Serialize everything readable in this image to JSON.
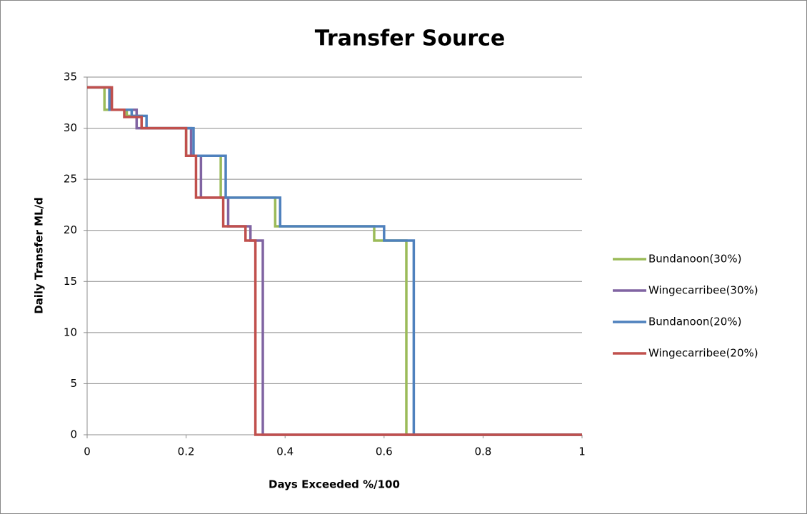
{
  "chart_data": {
    "type": "line",
    "title": "Transfer Source",
    "x_label": "Days Exceeded  %/100",
    "y_label": "Daily Transfer ML/d",
    "xlim": [
      0,
      1
    ],
    "xticks": [
      0,
      0.2,
      0.4,
      0.6,
      0.8,
      1
    ],
    "ylim": [
      0,
      35
    ],
    "yticks": [
      0,
      5,
      10,
      15,
      20,
      25,
      30,
      35
    ],
    "grid": true,
    "legend": "right",
    "series": [
      {
        "name": "Bundanoon(30%)",
        "color": "#9bbb59",
        "x": [
          0,
          0.035,
          0.035,
          0.08,
          0.08,
          0.11,
          0.11,
          0.2,
          0.2,
          0.27,
          0.27,
          0.38,
          0.38,
          0.58,
          0.58,
          0.645,
          0.645,
          1
        ],
        "y": [
          34,
          34,
          31.8,
          31.8,
          31.2,
          31.2,
          30,
          30,
          27.3,
          27.3,
          23.2,
          23.2,
          20.4,
          20.4,
          19,
          19,
          0,
          0
        ]
      },
      {
        "name": "Wingecarribee(30%)",
        "color": "#8064a2",
        "x": [
          0,
          0.045,
          0.045,
          0.1,
          0.1,
          0.21,
          0.21,
          0.23,
          0.23,
          0.285,
          0.285,
          0.33,
          0.33,
          0.355,
          0.355,
          1
        ],
        "y": [
          34,
          34,
          31.8,
          31.8,
          30,
          30,
          27.3,
          27.3,
          23.2,
          23.2,
          20.4,
          20.4,
          19,
          19,
          0,
          0
        ]
      },
      {
        "name": "Bundanoon(20%)",
        "color": "#4f81bd",
        "x": [
          0,
          0.045,
          0.045,
          0.09,
          0.09,
          0.12,
          0.12,
          0.215,
          0.215,
          0.28,
          0.28,
          0.39,
          0.39,
          0.6,
          0.6,
          0.66,
          0.66,
          1
        ],
        "y": [
          34,
          34,
          31.8,
          31.8,
          31.2,
          31.2,
          30,
          30,
          27.3,
          27.3,
          23.2,
          23.2,
          20.4,
          20.4,
          19,
          19,
          0,
          0
        ]
      },
      {
        "name": "Wingecarribee(20%)",
        "color": "#c0504d",
        "x": [
          0,
          0.05,
          0.05,
          0.075,
          0.075,
          0.11,
          0.11,
          0.2,
          0.2,
          0.22,
          0.22,
          0.275,
          0.275,
          0.32,
          0.32,
          0.34,
          0.34,
          1
        ],
        "y": [
          34,
          34,
          31.8,
          31.8,
          31.1,
          31.1,
          30,
          30,
          27.3,
          27.3,
          23.2,
          23.2,
          20.4,
          20.4,
          19,
          19,
          0,
          0
        ]
      }
    ]
  }
}
